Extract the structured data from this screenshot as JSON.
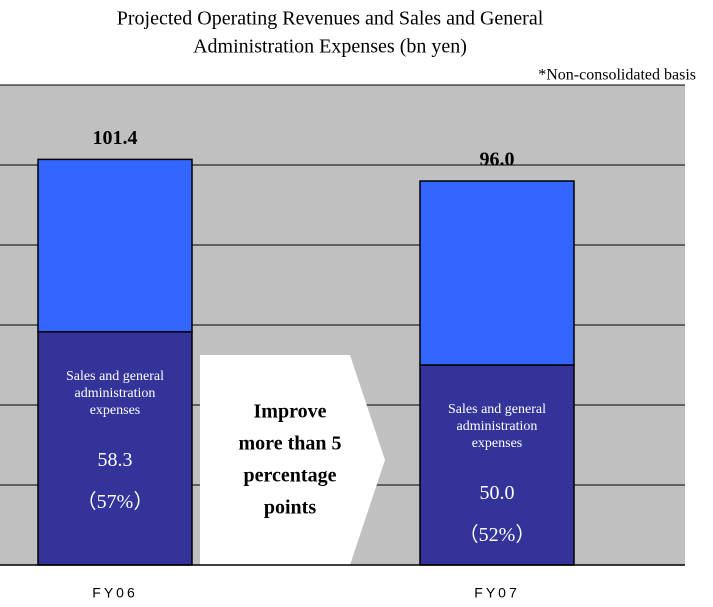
{
  "chart_data": {
    "type": "stacked_bar",
    "title": [
      "Projected Operating Revenues and Sales and General",
      "Administration Expenses (bn yen)"
    ],
    "note": "*Non-consolidated basis",
    "categories": [
      "FY06",
      "FY07"
    ],
    "series": [
      {
        "name": "Sales and general administration expenses",
        "color": "#333399",
        "values": [
          58.3,
          50.0
        ],
        "value_labels": [
          "58.3",
          "50.0"
        ]
      },
      {
        "color": "#3366ff",
        "values": [
          43.1,
          46.0
        ]
      }
    ],
    "totals": [
      101.4,
      96.0
    ],
    "total_labels": [
      "101.4",
      "96.0"
    ],
    "shares": [
      57,
      52
    ],
    "share_labels": [
      "（57%）",
      "（52%）"
    ],
    "annotation": [
      "Improve",
      "more than 5",
      "percentage",
      "points"
    ],
    "ylim": [
      0,
      120
    ],
    "yticks": [
      0,
      20,
      40,
      60,
      80,
      100,
      120
    ],
    "grid": true,
    "background": "#c0c0c0"
  }
}
